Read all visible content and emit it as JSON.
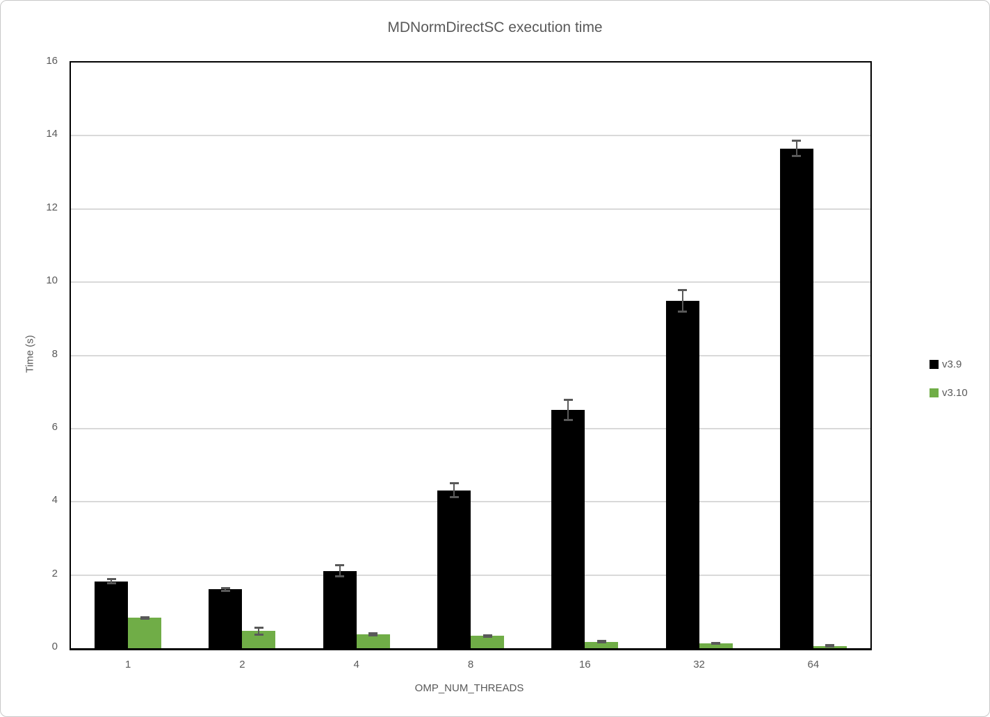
{
  "frame": {
    "background": "#FFFFFF",
    "border_color": "#C8C8C8"
  },
  "chart_data": {
    "type": "bar",
    "title": "MDNormDirectSC execution time",
    "xlabel": "OMP_NUM_THREADS",
    "ylabel": "Time (s)",
    "categories": [
      "1",
      "2",
      "4",
      "8",
      "16",
      "32",
      "64"
    ],
    "series": [
      {
        "name": "v3.9",
        "color": "#000000",
        "values": [
          1.83,
          1.61,
          2.11,
          4.31,
          6.51,
          9.49,
          13.65
        ],
        "errors": [
          0.06,
          0.05,
          0.16,
          0.2,
          0.28,
          0.3,
          0.22
        ]
      },
      {
        "name": "v3.10",
        "color": "#70AD47",
        "values": [
          0.83,
          0.47,
          0.38,
          0.34,
          0.18,
          0.13,
          0.06
        ],
        "errors": [
          0.03,
          0.1,
          0.04,
          0.03,
          0.03,
          0.02,
          0.03
        ]
      }
    ],
    "ylim": [
      0,
      16
    ],
    "yticks": [
      0,
      2,
      4,
      6,
      8,
      10,
      12,
      14,
      16
    ],
    "grid": true,
    "legend_position": "right",
    "styles": {
      "text_color": "#595959",
      "gridline_color": "#D9D9D9",
      "error_bar_color": "#595959",
      "plot_border_color": "#000000"
    }
  }
}
